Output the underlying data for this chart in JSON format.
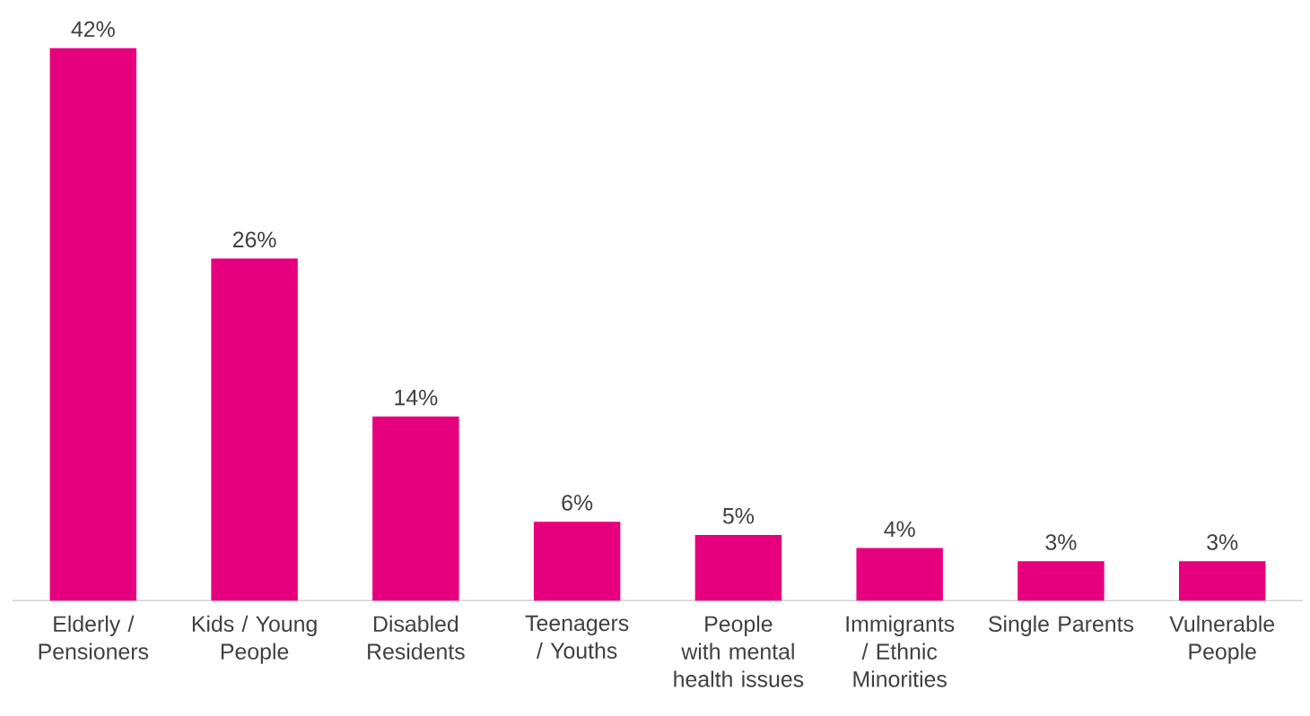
{
  "chart_data": {
    "type": "bar",
    "categories": [
      "Elderly / Pensioners",
      "Kids / Young People",
      "Disabled Residents",
      "Teenagers / Youths",
      "People with mental health issues",
      "Immigrants / Ethnic Minorities",
      "Single Parents",
      "Vulnerable People"
    ],
    "values": [
      42,
      26,
      14,
      6,
      5,
      4,
      3,
      3
    ],
    "value_labels": [
      "42%",
      "26%",
      "14%",
      "6%",
      "5%",
      "4%",
      "3%",
      "3%"
    ],
    "color": "#e6007e"
  }
}
